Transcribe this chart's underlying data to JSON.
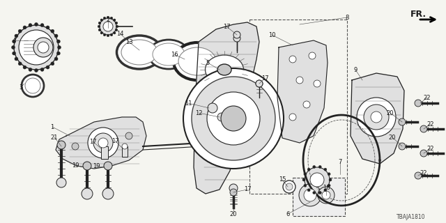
{
  "background_color": "#f5f5f0",
  "diagram_code": "TBAJA1810",
  "text_color": "#1a1a1a",
  "line_color": "#222222",
  "gray_fill": "#c8c8c8",
  "light_gray": "#e0e0e0",
  "dark_line": "#111111"
}
